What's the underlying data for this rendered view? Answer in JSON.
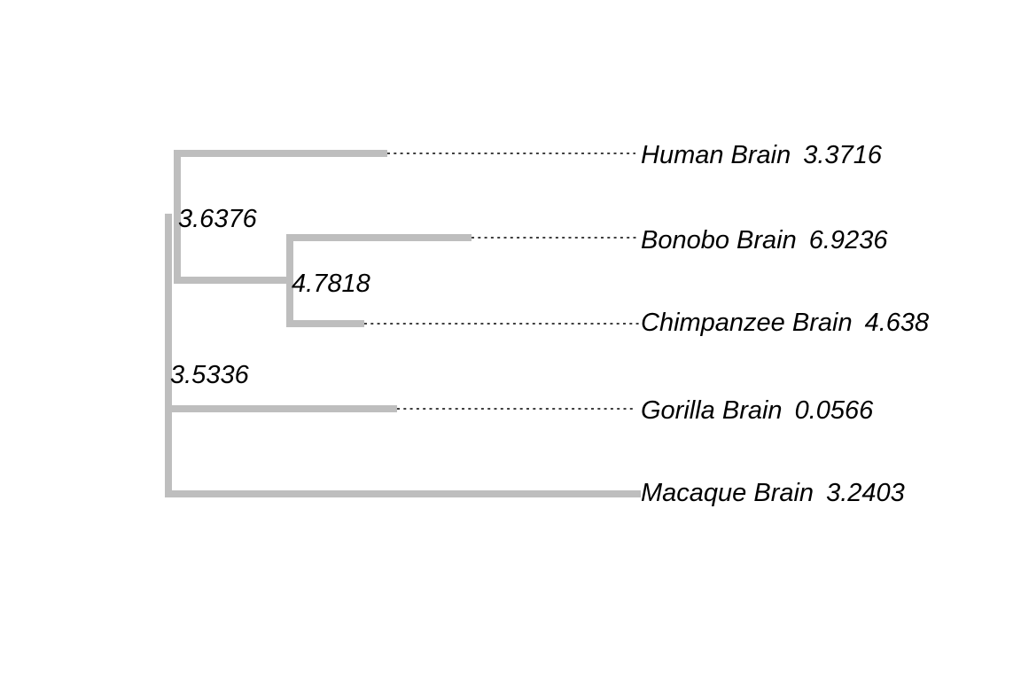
{
  "tips": [
    {
      "name": "Human Brain",
      "value": "3.3716"
    },
    {
      "name": "Bonobo Brain",
      "value": "6.9236"
    },
    {
      "name": "Chimpanzee Brain",
      "value": "4.638"
    },
    {
      "name": "Gorilla Brain",
      "value": "0.0566"
    },
    {
      "name": "Macaque Brain",
      "value": "3.2403"
    }
  ],
  "internal_nodes": [
    {
      "label": "3.6376"
    },
    {
      "label": "4.7818"
    },
    {
      "label": "3.5336"
    }
  ],
  "colors": {
    "branch": "#bebebe",
    "connector": "#000000",
    "text": "#000000"
  }
}
